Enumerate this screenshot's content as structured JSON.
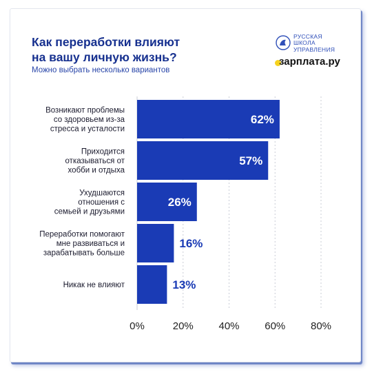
{
  "header": {
    "title_line1": "Как переработки влияют",
    "title_line2": "на вашу личную жизнь?",
    "subtitle": "Можно выбрать несколько вариантов"
  },
  "logos": {
    "rshu_lines": [
      "РУССКАЯ",
      "ШКОЛА",
      "УПРАВЛЕНИЯ"
    ],
    "zarplata": "зарплата.ру"
  },
  "colors": {
    "bar": "#1a3bb5",
    "bar_label_inside": "#ffffff",
    "bar_label_outside": "#1a3bb5",
    "title": "#16308f",
    "grid": "#c8ccd6",
    "accent_yellow": "#f6d21e"
  },
  "chart_data": {
    "type": "bar",
    "orientation": "horizontal",
    "categories": [
      [
        "Возникают проблемы",
        "со здоровьем из-за",
        "стресса и усталости"
      ],
      [
        "Приходится",
        "отказываться от",
        "хобби и отдыха"
      ],
      [
        "Ухудшаются",
        "отношения с",
        "семьей и друзьями"
      ],
      [
        "Переработки помогают",
        "мне развиваться и",
        "зарабатывать больше"
      ],
      [
        "Никак не влияют"
      ]
    ],
    "values": [
      62,
      57,
      26,
      16,
      13
    ],
    "value_labels": [
      "62%",
      "57%",
      "26%",
      "16%",
      "13%"
    ],
    "x_ticks": [
      "0%",
      "20%",
      "40%",
      "60%",
      "80%"
    ],
    "xlim": [
      0,
      80
    ],
    "grid": true
  }
}
